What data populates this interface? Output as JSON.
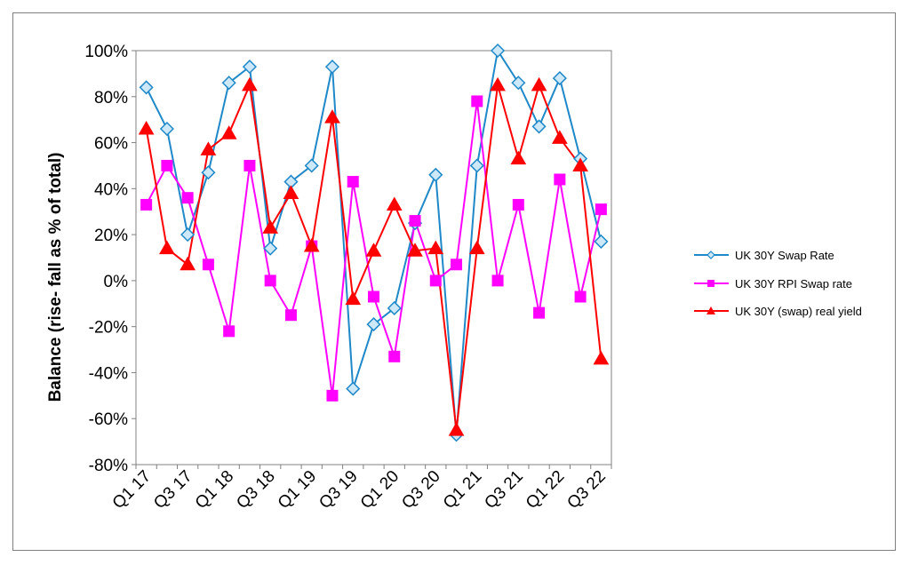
{
  "chart_data": {
    "type": "line",
    "title": "",
    "xlabel": "",
    "ylabel": "Balance (rise- fall as % of total)",
    "ylim": [
      -80,
      100
    ],
    "yticks": [
      -80,
      -60,
      -40,
      -20,
      0,
      20,
      40,
      60,
      80,
      100
    ],
    "ytick_labels": [
      "-80%",
      "-60%",
      "-40%",
      "-20%",
      "0%",
      "20%",
      "40%",
      "60%",
      "80%",
      "100%"
    ],
    "x": [
      "Q1 17",
      "Q2 17",
      "Q3 17",
      "Q4 17",
      "Q1 18",
      "Q2 18",
      "Q3 18",
      "Q4 18",
      "Q1 19",
      "Q2 19",
      "Q3 19",
      "Q4 19",
      "Q1 20",
      "Q2 20",
      "Q3 20",
      "Q4 20",
      "Q1 21",
      "Q2 21",
      "Q3 21",
      "Q4 21",
      "Q1 22",
      "Q2 22",
      "Q3 22"
    ],
    "xtick_labels": [
      "Q1 17",
      "Q3 17",
      "Q1 18",
      "Q3 18",
      "Q1 19",
      "Q3 19",
      "Q1 20",
      "Q3 20",
      "Q1 21",
      "Q3 21",
      "Q1 22",
      "Q3 22"
    ],
    "grid": false,
    "legend_position": "right",
    "series": [
      {
        "name": "UK 30Y Swap Rate",
        "color": "#1E88C8",
        "marker": "diamond",
        "values": [
          84,
          66,
          20,
          47,
          86,
          93,
          14,
          43,
          50,
          93,
          -47,
          -19,
          -12,
          25,
          46,
          -67,
          50,
          100,
          86,
          67,
          88,
          53,
          17
        ]
      },
      {
        "name": "UK 30Y RPI Swap rate",
        "color": "#FF00FF",
        "marker": "square",
        "values": [
          33,
          50,
          36,
          7,
          -22,
          50,
          0,
          -15,
          15,
          -50,
          43,
          -7,
          -33,
          26,
          0,
          7,
          78,
          0,
          33,
          -14,
          44,
          -7,
          31
        ]
      },
      {
        "name": "UK 30Y (swap) real yield",
        "color": "#FF0000",
        "marker": "triangle",
        "values": [
          66,
          14,
          7,
          57,
          64,
          85,
          23,
          38,
          15,
          71,
          -8,
          13,
          33,
          13,
          14,
          -65,
          14,
          85,
          53,
          85,
          62,
          50,
          -34
        ]
      }
    ]
  }
}
